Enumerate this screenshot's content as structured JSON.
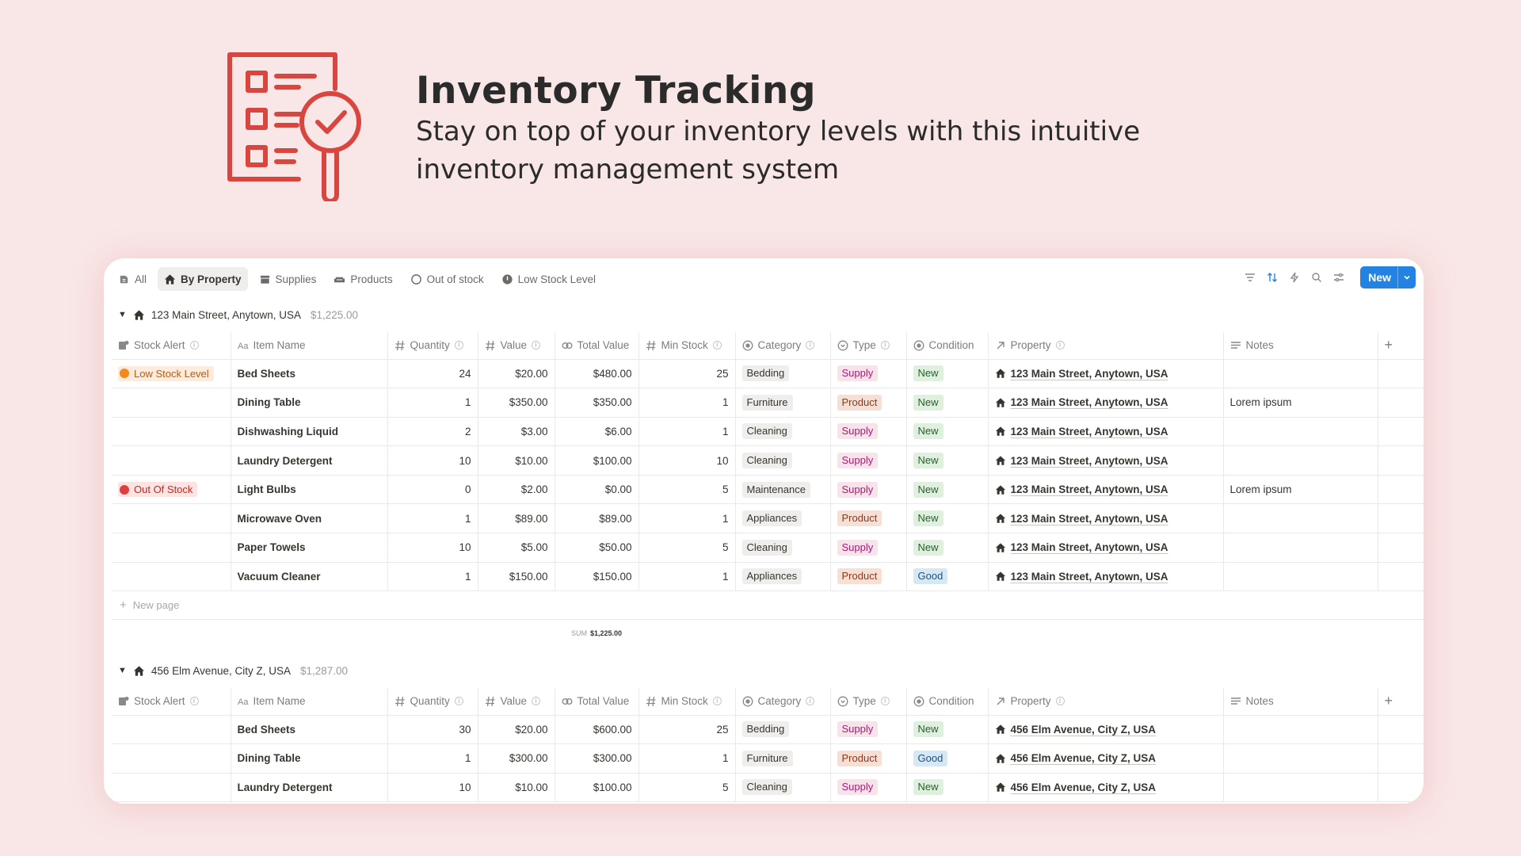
{
  "hero": {
    "title": "Inventory Tracking",
    "subtitle": "Stay on top of your inventory levels with this intuitive inventory management system",
    "accent": "#d9453f"
  },
  "views": [
    {
      "label": "All",
      "icon": "database-icon",
      "active": false
    },
    {
      "label": "By Property",
      "icon": "house-icon",
      "active": true
    },
    {
      "label": "Supplies",
      "icon": "tray-icon",
      "active": false
    },
    {
      "label": "Products",
      "icon": "sofa-icon",
      "active": false
    },
    {
      "label": "Out of stock",
      "icon": "circle-icon",
      "active": false
    },
    {
      "label": "Low Stock Level",
      "icon": "stock-icon",
      "active": false
    }
  ],
  "toolbar": {
    "new_label": "New"
  },
  "columns": [
    "Stock Alert",
    "Item Name",
    "Quantity",
    "Value",
    "Total Value",
    "Min Stock",
    "Category",
    "Type",
    "Condition",
    "Property",
    "Notes"
  ],
  "new_page_label": "New page",
  "sum_label": "SUM",
  "groups": [
    {
      "name": "123 Main Street, Anytown, USA",
      "total": "$1,225.00",
      "sum": "$1,225.00",
      "rows": [
        {
          "alert": "Low Stock Level",
          "alert_type": "low",
          "name": "Bed Sheets",
          "qty": "24",
          "value": "$20.00",
          "total": "$480.00",
          "min": "25",
          "category": "Bedding",
          "type": "Supply",
          "condition": "New",
          "property": "123 Main Street, Anytown, USA",
          "notes": ""
        },
        {
          "alert": "",
          "alert_type": "",
          "name": "Dining Table",
          "qty": "1",
          "value": "$350.00",
          "total": "$350.00",
          "min": "1",
          "category": "Furniture",
          "type": "Product",
          "condition": "New",
          "property": "123 Main Street, Anytown, USA",
          "notes": "Lorem ipsum"
        },
        {
          "alert": "",
          "alert_type": "",
          "name": "Dishwashing Liquid",
          "qty": "2",
          "value": "$3.00",
          "total": "$6.00",
          "min": "1",
          "category": "Cleaning",
          "type": "Supply",
          "condition": "New",
          "property": "123 Main Street, Anytown, USA",
          "notes": ""
        },
        {
          "alert": "",
          "alert_type": "",
          "name": "Laundry Detergent",
          "qty": "10",
          "value": "$10.00",
          "total": "$100.00",
          "min": "10",
          "category": "Cleaning",
          "type": "Supply",
          "condition": "New",
          "property": "123 Main Street, Anytown, USA",
          "notes": ""
        },
        {
          "alert": "Out Of Stock",
          "alert_type": "out",
          "name": "Light Bulbs",
          "qty": "0",
          "value": "$2.00",
          "total": "$0.00",
          "min": "5",
          "category": "Maintenance",
          "type": "Supply",
          "condition": "New",
          "property": "123 Main Street, Anytown, USA",
          "notes": "Lorem ipsum"
        },
        {
          "alert": "",
          "alert_type": "",
          "name": "Microwave Oven",
          "qty": "1",
          "value": "$89.00",
          "total": "$89.00",
          "min": "1",
          "category": "Appliances",
          "type": "Product",
          "condition": "New",
          "property": "123 Main Street, Anytown, USA",
          "notes": ""
        },
        {
          "alert": "",
          "alert_type": "",
          "name": "Paper Towels",
          "qty": "10",
          "value": "$5.00",
          "total": "$50.00",
          "min": "5",
          "category": "Cleaning",
          "type": "Supply",
          "condition": "New",
          "property": "123 Main Street, Anytown, USA",
          "notes": ""
        },
        {
          "alert": "",
          "alert_type": "",
          "name": "Vacuum Cleaner",
          "qty": "1",
          "value": "$150.00",
          "total": "$150.00",
          "min": "1",
          "category": "Appliances",
          "type": "Product",
          "condition": "Good",
          "property": "123 Main Street, Anytown, USA",
          "notes": ""
        }
      ]
    },
    {
      "name": "456 Elm Avenue, City Z, USA",
      "total": "$1,287.00",
      "sum": "",
      "rows": [
        {
          "alert": "",
          "alert_type": "",
          "name": "Bed Sheets",
          "qty": "30",
          "value": "$20.00",
          "total": "$600.00",
          "min": "25",
          "category": "Bedding",
          "type": "Supply",
          "condition": "New",
          "property": "456 Elm Avenue, City Z, USA",
          "notes": ""
        },
        {
          "alert": "",
          "alert_type": "",
          "name": "Dining Table",
          "qty": "1",
          "value": "$300.00",
          "total": "$300.00",
          "min": "1",
          "category": "Furniture",
          "type": "Product",
          "condition": "Good",
          "property": "456 Elm Avenue, City Z, USA",
          "notes": ""
        },
        {
          "alert": "",
          "alert_type": "",
          "name": "Laundry Detergent",
          "qty": "10",
          "value": "$10.00",
          "total": "$100.00",
          "min": "5",
          "category": "Cleaning",
          "type": "Supply",
          "condition": "New",
          "property": "456 Elm Avenue, City Z, USA",
          "notes": ""
        }
      ]
    }
  ]
}
